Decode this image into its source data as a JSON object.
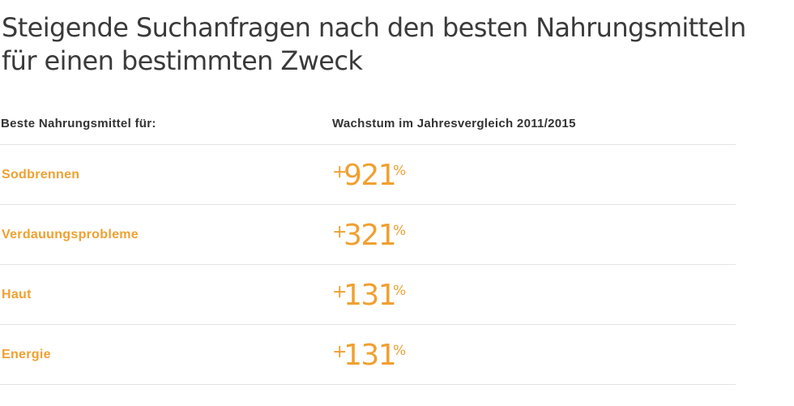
{
  "title": "Steigende Suchanfragen nach den besten Nahrungsmitteln für einen bestimmten Zweck",
  "colors": {
    "accent": "#f0a030",
    "text": "#333333",
    "divider": "#e3e3e3"
  },
  "chart_data": {
    "type": "table",
    "title": "Steigende Suchanfragen nach den besten Nahrungsmitteln für einen bestimmten Zweck",
    "columns": [
      "Beste Nahrungsmittel für:",
      "Wachstum im Jahresvergleich 2011/2015"
    ],
    "categories": [
      "Sodbrennen",
      "Verdauungsprobleme",
      "Haut",
      "Energie"
    ],
    "values": [
      921,
      321,
      131,
      131
    ],
    "value_prefix": "+",
    "value_unit": "%",
    "rows": [
      {
        "label": "Sodbrennen",
        "sign": "+",
        "value": "921",
        "unit": "%"
      },
      {
        "label": "Verdauungsprobleme",
        "sign": "+",
        "value": "321",
        "unit": "%"
      },
      {
        "label": "Haut",
        "sign": "+",
        "value": "131",
        "unit": "%"
      },
      {
        "label": "Energie",
        "sign": "+",
        "value": "131",
        "unit": "%"
      }
    ]
  }
}
